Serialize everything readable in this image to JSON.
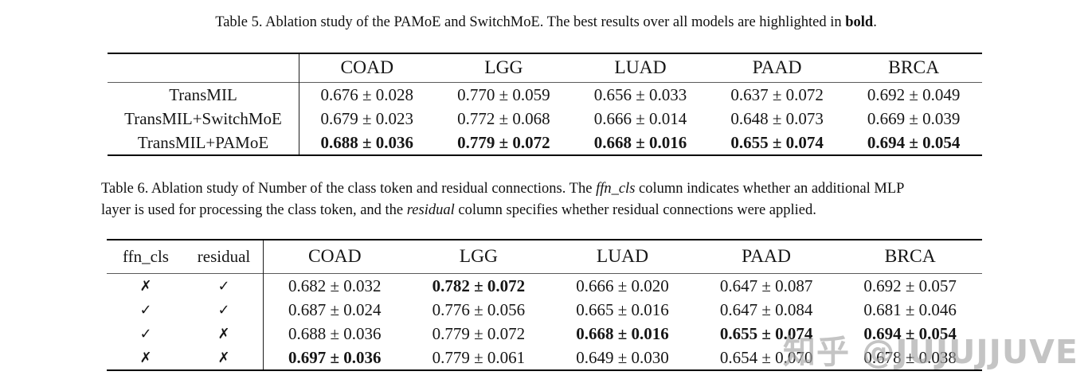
{
  "page": {
    "watermark": "知乎 @JUJUJJUVE"
  },
  "table5": {
    "caption": {
      "prefix": "Table 5. Ablation study of the PAMoE and SwitchMoE. The best results over all models are highlighted in ",
      "bold_word": "bold",
      "suffix": "."
    },
    "columns": [
      "COAD",
      "LGG",
      "LUAD",
      "PAAD",
      "BRCA"
    ],
    "rows": [
      {
        "label": "TransMIL",
        "values": [
          "0.676 ± 0.028",
          "0.770 ± 0.059",
          "0.656 ± 0.033",
          "0.637 ± 0.072",
          "0.692 ± 0.049"
        ]
      },
      {
        "label": "TransMIL+SwitchMoE",
        "values": [
          "0.679 ± 0.023",
          "0.772 ± 0.068",
          "0.666 ± 0.014",
          "0.648 ± 0.073",
          "0.669 ± 0.039"
        ]
      },
      {
        "label": "TransMIL+PAMoE",
        "values": [
          "0.688 ± 0.036",
          "0.779 ± 0.072",
          "0.668 ± 0.016",
          "0.655 ± 0.074",
          "0.694 ± 0.054"
        ]
      }
    ],
    "best_row": "TransMIL+PAMoE"
  },
  "table6": {
    "caption": {
      "line1_part1": "Table 6. Ablation study of Number of the class token and residual connections. The ",
      "line1_italic": "ffn_cls",
      "line1_part2": " column indicates whether an additional MLP",
      "line2_part1": "layer is used for processing the class token, and the ",
      "line2_italic": "residual",
      "line2_part2": " column specifies whether residual connections were applied."
    },
    "columns": [
      "ffn_cls",
      "residual",
      "COAD",
      "LGG",
      "LUAD",
      "PAAD",
      "BRCA"
    ],
    "rows": [
      {
        "ffn_cls": "✗",
        "residual": "✓",
        "values": [
          "0.682 ± 0.032",
          "0.782 ± 0.072",
          "0.666 ± 0.020",
          "0.647 ± 0.087",
          "0.692 ± 0.057"
        ]
      },
      {
        "ffn_cls": "✓",
        "residual": "✓",
        "values": [
          "0.687 ± 0.024",
          "0.776 ± 0.056",
          "0.665 ± 0.016",
          "0.647 ± 0.084",
          "0.681 ± 0.046"
        ]
      },
      {
        "ffn_cls": "✓",
        "residual": "✗",
        "values": [
          "0.688 ± 0.036",
          "0.779 ± 0.072",
          "0.668 ± 0.016",
          "0.655 ± 0.074",
          "0.694 ± 0.054"
        ]
      },
      {
        "ffn_cls": "✗",
        "residual": "✗",
        "values": [
          "0.697 ± 0.036",
          "0.779 ± 0.061",
          "0.649 ± 0.030",
          "0.654 ± 0.070",
          "0.678 ± 0.038"
        ]
      }
    ],
    "bold_cells": [
      [
        0,
        1
      ],
      [
        2,
        2
      ],
      [
        2,
        3
      ],
      [
        2,
        4
      ],
      [
        3,
        0
      ]
    ]
  }
}
